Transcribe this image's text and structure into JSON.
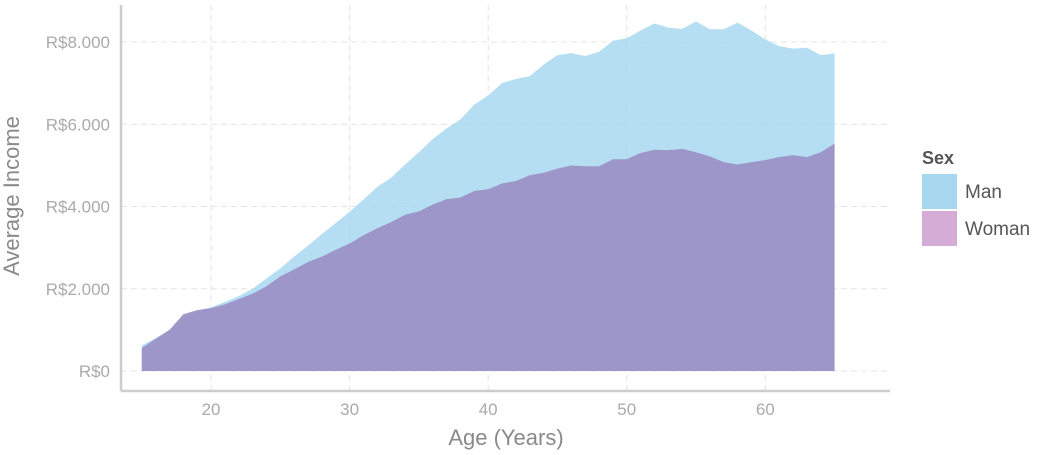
{
  "chart_data": {
    "type": "area",
    "title": "",
    "xlabel": "Age (Years)",
    "ylabel": "Average Income",
    "xlim": [
      13.5,
      69
    ],
    "ylim": [
      0,
      8900
    ],
    "x_ticks": [
      20,
      30,
      40,
      50,
      60
    ],
    "y_ticks": [
      0,
      2000,
      4000,
      6000,
      8000
    ],
    "y_tick_labels": [
      "R$0",
      "R$2.000",
      "R$4.000",
      "R$6.000",
      "R$8.000"
    ],
    "grid": true,
    "legend": {
      "title": "Sex",
      "placement": "right"
    },
    "x": [
      15,
      16,
      17,
      18,
      19,
      20,
      21,
      22,
      23,
      24,
      25,
      26,
      27,
      28,
      29,
      30,
      31,
      32,
      33,
      34,
      35,
      36,
      37,
      38,
      39,
      40,
      41,
      42,
      43,
      44,
      45,
      46,
      47,
      48,
      49,
      50,
      51,
      52,
      53,
      54,
      55,
      56,
      57,
      58,
      59,
      60,
      61,
      62,
      63,
      64,
      65
    ],
    "series": [
      {
        "name": "Man",
        "color": "#a8d8f0",
        "values": [
          620,
          800,
          1000,
          1300,
          1450,
          1550,
          1680,
          1820,
          2000,
          2250,
          2500,
          2780,
          3050,
          3330,
          3600,
          3870,
          4170,
          4480,
          4700,
          5020,
          5320,
          5640,
          5900,
          6120,
          6480,
          6700,
          7000,
          7100,
          7170,
          7450,
          7680,
          7730,
          7660,
          7760,
          8030,
          8090,
          8280,
          8450,
          8350,
          8320,
          8500,
          8310,
          8310,
          8470,
          8280,
          8060,
          7900,
          7840,
          7860,
          7680,
          7720
        ]
      },
      {
        "name": "Woman",
        "color": "#c9a0cf",
        "values": [
          560,
          780,
          1000,
          1380,
          1480,
          1530,
          1620,
          1750,
          1880,
          2060,
          2300,
          2470,
          2650,
          2780,
          2950,
          3100,
          3300,
          3470,
          3620,
          3800,
          3880,
          4050,
          4180,
          4220,
          4380,
          4420,
          4560,
          4620,
          4760,
          4820,
          4920,
          5000,
          4980,
          4980,
          5150,
          5150,
          5300,
          5380,
          5370,
          5400,
          5320,
          5220,
          5080,
          5020,
          5080,
          5130,
          5200,
          5250,
          5200,
          5320,
          5530
        ]
      }
    ]
  }
}
